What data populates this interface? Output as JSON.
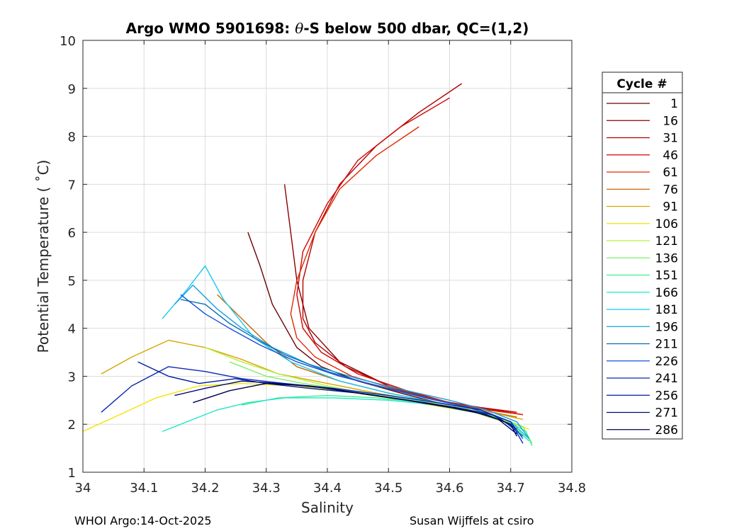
{
  "chart_data": {
    "type": "line",
    "title_prefix": "Argo WMO 5901698: ",
    "title_theta": "θ",
    "title_suffix": "-S below 500 dbar,  QC=(1,2)",
    "xlabel": "Salinity",
    "ylabel": "Potential Temperature ( ˚C)",
    "xlim": [
      34,
      34.8
    ],
    "ylim": [
      1,
      10
    ],
    "xticks": [
      34,
      34.1,
      34.2,
      34.3,
      34.4,
      34.5,
      34.6,
      34.7,
      34.8
    ],
    "xtick_labels": [
      "34",
      "34.1",
      "34.2",
      "34.3",
      "34.4",
      "34.5",
      "34.6",
      "34.7",
      "34.8"
    ],
    "yticks": [
      1,
      2,
      3,
      4,
      5,
      6,
      7,
      8,
      9,
      10
    ],
    "ytick_labels": [
      "1",
      "2",
      "3",
      "4",
      "5",
      "6",
      "7",
      "8",
      "9",
      "10"
    ],
    "grid": true,
    "legend_title": "Cycle #",
    "legend_position": "right-outside",
    "series": [
      {
        "name": "1",
        "color": "#6a0000",
        "x": [
          34.27,
          34.29,
          34.31,
          34.35,
          34.39,
          34.45,
          34.52,
          34.58,
          34.62,
          34.67,
          34.72
        ],
        "y": [
          6.0,
          5.3,
          4.5,
          3.6,
          3.2,
          2.9,
          2.65,
          2.45,
          2.35,
          2.3,
          2.2
        ]
      },
      {
        "name": "16",
        "color": "#8c0000",
        "x": [
          34.33,
          34.34,
          34.35,
          34.37,
          34.42,
          34.5,
          34.56,
          34.61,
          34.66,
          34.71
        ],
        "y": [
          7.0,
          6.0,
          5.0,
          4.0,
          3.3,
          2.8,
          2.55,
          2.42,
          2.32,
          2.22
        ]
      },
      {
        "name": "31",
        "color": "#b00000",
        "x": [
          34.62,
          34.55,
          34.48,
          34.42,
          34.38,
          34.36,
          34.36,
          34.38,
          34.43,
          34.5,
          34.58,
          34.65,
          34.71
        ],
        "y": [
          9.1,
          8.5,
          7.8,
          7.0,
          6.0,
          5.0,
          4.2,
          3.7,
          3.2,
          2.8,
          2.5,
          2.35,
          2.25
        ]
      },
      {
        "name": "46",
        "color": "#d40000",
        "x": [
          34.6,
          34.52,
          34.45,
          34.4,
          34.36,
          34.35,
          34.36,
          34.39,
          34.45,
          34.53,
          34.6,
          34.67,
          34.72
        ],
        "y": [
          8.8,
          8.2,
          7.5,
          6.6,
          5.6,
          4.7,
          4.0,
          3.5,
          3.05,
          2.7,
          2.45,
          2.3,
          2.2
        ]
      },
      {
        "name": "61",
        "color": "#e02a00",
        "x": [
          34.55,
          34.48,
          34.42,
          34.38,
          34.35,
          34.34,
          34.35,
          34.38,
          34.44,
          34.52,
          34.6,
          34.66,
          34.72
        ],
        "y": [
          8.2,
          7.6,
          6.9,
          6.0,
          5.0,
          4.3,
          3.8,
          3.4,
          3.0,
          2.7,
          2.45,
          2.3,
          2.2
        ]
      },
      {
        "name": "76",
        "color": "#c86400",
        "x": [
          34.22,
          34.26,
          34.3,
          34.35,
          34.42,
          34.5,
          34.58,
          34.65,
          34.71
        ],
        "y": [
          4.7,
          4.2,
          3.7,
          3.2,
          2.9,
          2.65,
          2.45,
          2.3,
          2.15
        ]
      },
      {
        "name": "91",
        "color": "#d9a400",
        "x": [
          34.03,
          34.08,
          34.14,
          34.2,
          34.26,
          34.32,
          34.4,
          34.48,
          34.57,
          34.65,
          34.72
        ],
        "y": [
          3.05,
          3.4,
          3.75,
          3.6,
          3.35,
          3.05,
          2.85,
          2.65,
          2.45,
          2.3,
          2.1
        ]
      },
      {
        "name": "106",
        "color": "#f5e400",
        "x": [
          34.0,
          34.06,
          34.12,
          34.19,
          34.26,
          34.34,
          34.42,
          34.5,
          34.58,
          34.66,
          34.73
        ],
        "y": [
          1.85,
          2.2,
          2.55,
          2.8,
          2.85,
          2.8,
          2.7,
          2.55,
          2.4,
          2.2,
          1.9
        ]
      },
      {
        "name": "121",
        "color": "#b4f03c",
        "x": [
          34.2,
          34.26,
          34.32,
          34.4,
          34.48,
          34.56,
          34.64,
          34.7,
          34.73
        ],
        "y": [
          3.6,
          3.3,
          3.05,
          2.8,
          2.6,
          2.42,
          2.25,
          2.0,
          1.7
        ]
      },
      {
        "name": "136",
        "color": "#78f064",
        "x": [
          34.24,
          34.3,
          34.36,
          34.44,
          34.52,
          34.6,
          34.67,
          34.72,
          34.735
        ],
        "y": [
          3.3,
          3.0,
          2.85,
          2.7,
          2.55,
          2.4,
          2.2,
          1.95,
          1.6
        ]
      },
      {
        "name": "151",
        "color": "#3cf08c",
        "x": [
          34.26,
          34.32,
          34.4,
          34.48,
          34.56,
          34.63,
          34.69,
          34.725,
          34.735
        ],
        "y": [
          2.4,
          2.55,
          2.6,
          2.55,
          2.45,
          2.3,
          2.1,
          1.85,
          1.55
        ]
      },
      {
        "name": "166",
        "color": "#1ee6c8",
        "x": [
          34.13,
          34.18,
          34.22,
          34.27,
          34.33,
          34.41,
          34.5,
          34.58,
          34.65,
          34.7,
          34.73
        ],
        "y": [
          1.85,
          2.1,
          2.3,
          2.45,
          2.55,
          2.55,
          2.5,
          2.4,
          2.25,
          2.0,
          1.65
        ]
      },
      {
        "name": "181",
        "color": "#14c8f0",
        "x": [
          34.13,
          34.17,
          34.2,
          34.23,
          34.28,
          34.34,
          34.42,
          34.5,
          34.58,
          34.65,
          34.7,
          34.73
        ],
        "y": [
          4.2,
          4.8,
          5.3,
          4.6,
          3.8,
          3.3,
          2.9,
          2.65,
          2.45,
          2.3,
          2.05,
          1.7
        ]
      },
      {
        "name": "196",
        "color": "#14a0dc",
        "x": [
          34.15,
          34.18,
          34.22,
          34.26,
          34.31,
          34.37,
          34.45,
          34.53,
          34.6,
          34.66,
          34.71,
          34.73
        ],
        "y": [
          4.5,
          4.9,
          4.4,
          4.0,
          3.6,
          3.25,
          2.95,
          2.7,
          2.5,
          2.3,
          2.05,
          1.7
        ]
      },
      {
        "name": "211",
        "color": "#0a6eb4",
        "x": [
          34.16,
          34.2,
          34.24,
          34.28,
          34.33,
          34.4,
          34.48,
          34.56,
          34.63,
          34.68,
          34.72
        ],
        "y": [
          4.6,
          4.5,
          4.1,
          3.8,
          3.45,
          3.1,
          2.8,
          2.55,
          2.35,
          2.15,
          1.75
        ]
      },
      {
        "name": "226",
        "color": "#1450dc",
        "x": [
          34.16,
          34.2,
          34.24,
          34.29,
          34.35,
          34.42,
          34.5,
          34.58,
          34.65,
          34.7,
          34.72
        ],
        "y": [
          4.7,
          4.3,
          4.0,
          3.65,
          3.3,
          3.0,
          2.75,
          2.5,
          2.3,
          2.05,
          1.7
        ]
      },
      {
        "name": "241",
        "color": "#0a28b4",
        "x": [
          34.03,
          34.08,
          34.14,
          34.2,
          34.26,
          34.33,
          34.41,
          34.5,
          34.58,
          34.65,
          34.7,
          34.72
        ],
        "y": [
          2.25,
          2.8,
          3.2,
          3.1,
          2.95,
          2.85,
          2.75,
          2.6,
          2.45,
          2.3,
          2.05,
          1.6
        ]
      },
      {
        "name": "256",
        "color": "#001aa0",
        "x": [
          34.09,
          34.14,
          34.19,
          34.25,
          34.3,
          34.37,
          34.45,
          34.53,
          34.61,
          34.67,
          34.71
        ],
        "y": [
          3.3,
          3.0,
          2.85,
          2.95,
          2.85,
          2.75,
          2.65,
          2.5,
          2.35,
          2.2,
          1.9
        ]
      },
      {
        "name": "271",
        "color": "#000a78",
        "x": [
          34.15,
          34.2,
          34.26,
          34.32,
          34.4,
          34.48,
          34.56,
          34.63,
          34.68,
          34.71
        ],
        "y": [
          2.6,
          2.75,
          2.9,
          2.85,
          2.75,
          2.6,
          2.45,
          2.3,
          2.1,
          1.8
        ]
      },
      {
        "name": "286",
        "color": "#000050",
        "x": [
          34.18,
          34.24,
          34.3,
          34.37,
          34.45,
          34.53,
          34.6,
          34.66,
          34.7,
          34.71
        ],
        "y": [
          2.45,
          2.7,
          2.85,
          2.8,
          2.65,
          2.5,
          2.35,
          2.2,
          2.0,
          1.75
        ]
      }
    ]
  },
  "footer": {
    "left": "WHOI Argo:14-Oct-2025",
    "right": "Susan Wijffels at csiro"
  }
}
